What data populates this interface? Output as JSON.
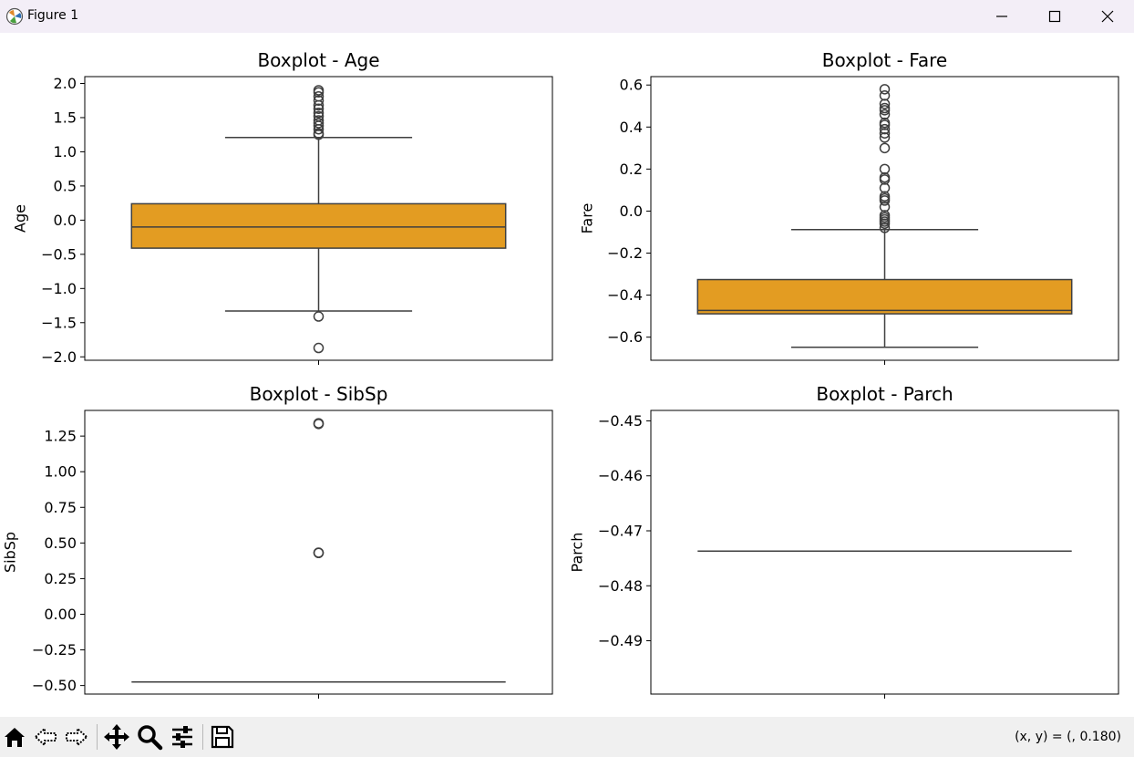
{
  "window": {
    "title": "Figure 1",
    "icons": {
      "app": "matplotlib-icon",
      "minimize": "minimize-icon",
      "maximize": "maximize-icon",
      "close": "close-icon"
    }
  },
  "toolbar": {
    "icons": [
      "home-icon",
      "back-arrow-icon",
      "forward-arrow-icon",
      "pan-move-icon",
      "zoom-magnifier-icon",
      "configure-subplots-icon",
      "save-disk-icon"
    ],
    "coords_text": "(x, y) = (, 0.180)"
  },
  "colors": {
    "box_fill": "#e39c22",
    "line": "#3f3f3f",
    "frame": "#000000"
  },
  "chart_data": [
    {
      "type": "box",
      "title": "Boxplot - Age",
      "ylabel": "Age",
      "ylim": [
        -2.05,
        2.1
      ],
      "yticks": [
        2.0,
        1.5,
        1.0,
        0.5,
        0.0,
        -0.5,
        -1.0,
        -1.5,
        -2.0
      ],
      "ytick_labels": [
        "2.0",
        "1.5",
        "1.0",
        "0.5",
        "0.0",
        "−0.5",
        "−1.0",
        "−1.5",
        "−2.0"
      ],
      "box": {
        "whisker_low": -1.33,
        "q1": -0.41,
        "median": -0.1,
        "q3": 0.24,
        "whisker_high": 1.21
      },
      "outliers": [
        1.27,
        1.25,
        1.33,
        1.38,
        1.42,
        1.46,
        1.52,
        1.57,
        1.63,
        1.68,
        1.75,
        1.81,
        1.87,
        1.9,
        -1.41,
        -1.87
      ]
    },
    {
      "type": "box",
      "title": "Boxplot - Fare",
      "ylabel": "Fare",
      "ylim": [
        -0.71,
        0.64
      ],
      "yticks": [
        0.6,
        0.4,
        0.2,
        0.0,
        -0.2,
        -0.4,
        -0.6
      ],
      "ytick_labels": [
        "0.6",
        "0.4",
        "0.2",
        "0.0",
        "−0.2",
        "−0.4",
        "−0.6"
      ],
      "box": {
        "whisker_low": -0.648,
        "q1": -0.489,
        "median": -0.473,
        "q3": -0.326,
        "whisker_high": -0.088
      },
      "outliers": [
        0.58,
        0.55,
        0.51,
        0.49,
        0.48,
        0.46,
        0.42,
        0.41,
        0.39,
        0.37,
        0.35,
        0.3,
        0.2,
        0.16,
        0.15,
        0.11,
        0.07,
        0.06,
        0.05,
        0.02,
        -0.02,
        -0.03,
        -0.04,
        -0.05,
        -0.06,
        -0.08
      ]
    },
    {
      "type": "box",
      "title": "Boxplot - SibSp",
      "ylabel": "SibSp",
      "ylim": [
        -0.56,
        1.43
      ],
      "yticks": [
        1.25,
        1.0,
        0.75,
        0.5,
        0.25,
        0.0,
        -0.25,
        -0.5
      ],
      "ytick_labels": [
        "1.25",
        "1.00",
        "0.75",
        "0.50",
        "0.25",
        "0.00",
        "−0.25",
        "−0.50"
      ],
      "box": {
        "whisker_low": -0.475,
        "q1": -0.475,
        "median": -0.475,
        "q3": -0.475,
        "whisker_high": -0.475
      },
      "outliers": [
        1.34,
        1.335,
        0.432,
        0.43
      ]
    },
    {
      "type": "box",
      "title": "Boxplot - Parch",
      "ylabel": "Parch",
      "ylim": [
        -0.4997,
        -0.4481
      ],
      "yticks": [
        -0.45,
        -0.46,
        -0.47,
        -0.48,
        -0.49
      ],
      "ytick_labels": [
        "−0.45",
        "−0.46",
        "−0.47",
        "−0.48",
        "−0.49"
      ],
      "box": {
        "whisker_low": -0.4737,
        "q1": -0.4737,
        "median": -0.4737,
        "q3": -0.4737,
        "whisker_high": -0.4737
      },
      "outliers": []
    }
  ]
}
